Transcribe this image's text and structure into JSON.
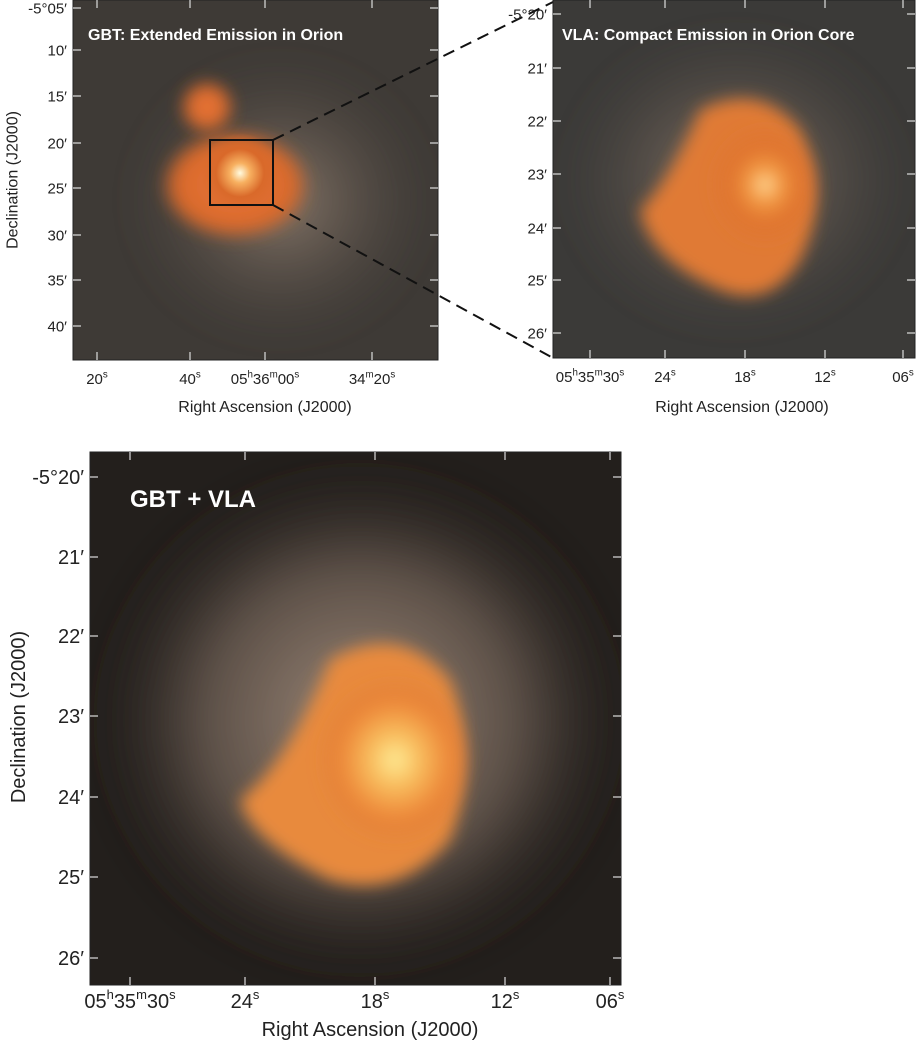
{
  "panels": [
    {
      "title": "GBT: Extended Emission in Orion",
      "y_ticks": [
        "-5°05′",
        "10′",
        "15′",
        "20′",
        "25′",
        "30′",
        "35′",
        "40′"
      ],
      "x_ticks": [
        [
          "20",
          "s"
        ],
        [
          "40",
          "s"
        ],
        [
          "05",
          "h",
          "36",
          "m",
          "00",
          "s"
        ],
        [
          "34",
          "m",
          "20",
          "s"
        ]
      ],
      "x_label": "Right Ascension (J2000)",
      "y_label": "Declination (J2000)"
    },
    {
      "title": "VLA: Compact Emission in Orion Core",
      "y_ticks": [
        "-5°20′",
        "21′",
        "22′",
        "23′",
        "24′",
        "25′",
        "26′"
      ],
      "x_ticks": [
        [
          "05",
          "h",
          "35",
          "m",
          "30",
          "s"
        ],
        [
          "24",
          "s"
        ],
        [
          "18",
          "s"
        ],
        [
          "12",
          "s"
        ],
        [
          "06",
          "s"
        ]
      ],
      "x_label": "Right Ascension (J2000)"
    },
    {
      "title": "GBT + VLA",
      "y_ticks": [
        "-5°20′",
        "21′",
        "22′",
        "23′",
        "24′",
        "25′",
        "26′"
      ],
      "x_ticks": [
        [
          "05",
          "h",
          "35",
          "m",
          "30",
          "s"
        ],
        [
          "24",
          "s"
        ],
        [
          "18",
          "s"
        ],
        [
          "12",
          "s"
        ],
        [
          "06",
          "s"
        ]
      ],
      "x_label": "Right Ascension (J2000)",
      "y_label": "Declination (J2000)"
    }
  ]
}
